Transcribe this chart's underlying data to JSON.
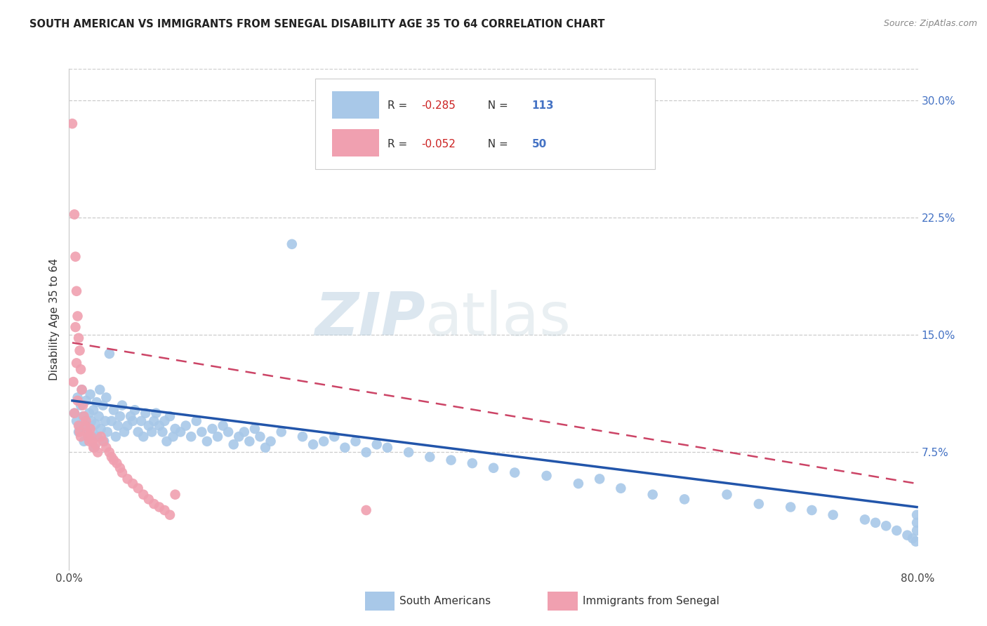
{
  "title": "SOUTH AMERICAN VS IMMIGRANTS FROM SENEGAL DISABILITY AGE 35 TO 64 CORRELATION CHART",
  "source": "Source: ZipAtlas.com",
  "ylabel": "Disability Age 35 to 64",
  "xlim": [
    0.0,
    0.8
  ],
  "ylim": [
    0.0,
    0.32
  ],
  "xticks": [
    0.0,
    0.1,
    0.2,
    0.3,
    0.4,
    0.5,
    0.6,
    0.7,
    0.8
  ],
  "yticks": [
    0.0,
    0.075,
    0.15,
    0.225,
    0.3
  ],
  "blue_color": "#a8c8e8",
  "blue_line_color": "#2255aa",
  "pink_color": "#f0a0b0",
  "pink_line_color": "#cc4466",
  "legend_blue_label": "South Americans",
  "legend_pink_label": "Immigrants from Senegal",
  "R_blue": "-0.285",
  "N_blue": "113",
  "R_pink": "-0.052",
  "N_pink": "50",
  "watermark_zip": "ZIP",
  "watermark_atlas": "atlas",
  "blue_points_x": [
    0.005,
    0.007,
    0.008,
    0.009,
    0.01,
    0.011,
    0.012,
    0.013,
    0.014,
    0.015,
    0.016,
    0.017,
    0.018,
    0.019,
    0.02,
    0.021,
    0.022,
    0.023,
    0.024,
    0.025,
    0.026,
    0.027,
    0.028,
    0.029,
    0.03,
    0.032,
    0.033,
    0.034,
    0.035,
    0.036,
    0.038,
    0.04,
    0.042,
    0.044,
    0.046,
    0.048,
    0.05,
    0.052,
    0.055,
    0.058,
    0.06,
    0.062,
    0.065,
    0.068,
    0.07,
    0.072,
    0.075,
    0.078,
    0.08,
    0.082,
    0.085,
    0.088,
    0.09,
    0.092,
    0.095,
    0.098,
    0.1,
    0.105,
    0.11,
    0.115,
    0.12,
    0.125,
    0.13,
    0.135,
    0.14,
    0.145,
    0.15,
    0.155,
    0.16,
    0.165,
    0.17,
    0.175,
    0.18,
    0.185,
    0.19,
    0.2,
    0.21,
    0.22,
    0.23,
    0.24,
    0.25,
    0.26,
    0.27,
    0.28,
    0.29,
    0.3,
    0.32,
    0.34,
    0.36,
    0.38,
    0.4,
    0.42,
    0.45,
    0.48,
    0.5,
    0.52,
    0.55,
    0.58,
    0.62,
    0.65,
    0.68,
    0.7,
    0.72,
    0.75,
    0.76,
    0.77,
    0.78,
    0.79,
    0.795,
    0.798,
    0.799,
    0.799,
    0.799
  ],
  "blue_points_y": [
    0.1,
    0.095,
    0.11,
    0.088,
    0.092,
    0.105,
    0.115,
    0.098,
    0.082,
    0.095,
    0.108,
    0.09,
    0.085,
    0.1,
    0.112,
    0.095,
    0.088,
    0.102,
    0.078,
    0.093,
    0.107,
    0.085,
    0.098,
    0.115,
    0.09,
    0.105,
    0.082,
    0.095,
    0.11,
    0.088,
    0.138,
    0.095,
    0.102,
    0.085,
    0.092,
    0.098,
    0.105,
    0.088,
    0.092,
    0.098,
    0.095,
    0.102,
    0.088,
    0.095,
    0.085,
    0.1,
    0.092,
    0.088,
    0.095,
    0.1,
    0.092,
    0.088,
    0.095,
    0.082,
    0.098,
    0.085,
    0.09,
    0.088,
    0.092,
    0.085,
    0.095,
    0.088,
    0.082,
    0.09,
    0.085,
    0.092,
    0.088,
    0.08,
    0.085,
    0.088,
    0.082,
    0.09,
    0.085,
    0.078,
    0.082,
    0.088,
    0.208,
    0.085,
    0.08,
    0.082,
    0.085,
    0.078,
    0.082,
    0.075,
    0.08,
    0.078,
    0.075,
    0.072,
    0.07,
    0.068,
    0.065,
    0.062,
    0.06,
    0.055,
    0.058,
    0.052,
    0.048,
    0.045,
    0.048,
    0.042,
    0.04,
    0.038,
    0.035,
    0.032,
    0.03,
    0.028,
    0.025,
    0.022,
    0.02,
    0.018,
    0.035,
    0.03,
    0.025
  ],
  "pink_points_x": [
    0.003,
    0.004,
    0.005,
    0.005,
    0.006,
    0.006,
    0.007,
    0.007,
    0.008,
    0.008,
    0.009,
    0.009,
    0.01,
    0.01,
    0.011,
    0.011,
    0.012,
    0.013,
    0.014,
    0.015,
    0.016,
    0.017,
    0.018,
    0.019,
    0.02,
    0.021,
    0.022,
    0.023,
    0.025,
    0.027,
    0.03,
    0.032,
    0.035,
    0.038,
    0.04,
    0.042,
    0.045,
    0.048,
    0.05,
    0.055,
    0.06,
    0.065,
    0.07,
    0.075,
    0.08,
    0.085,
    0.09,
    0.095,
    0.1,
    0.28
  ],
  "pink_points_y": [
    0.285,
    0.12,
    0.227,
    0.1,
    0.2,
    0.155,
    0.178,
    0.132,
    0.162,
    0.108,
    0.148,
    0.092,
    0.14,
    0.088,
    0.128,
    0.085,
    0.115,
    0.105,
    0.098,
    0.092,
    0.095,
    0.088,
    0.085,
    0.082,
    0.09,
    0.085,
    0.082,
    0.078,
    0.08,
    0.075,
    0.085,
    0.082,
    0.078,
    0.075,
    0.072,
    0.07,
    0.068,
    0.065,
    0.062,
    0.058,
    0.055,
    0.052,
    0.048,
    0.045,
    0.042,
    0.04,
    0.038,
    0.035,
    0.048,
    0.038
  ],
  "blue_line_x": [
    0.003,
    0.799
  ],
  "blue_line_y": [
    0.108,
    0.04
  ],
  "pink_line_x": [
    0.003,
    0.799
  ],
  "pink_line_y": [
    0.145,
    0.055
  ]
}
